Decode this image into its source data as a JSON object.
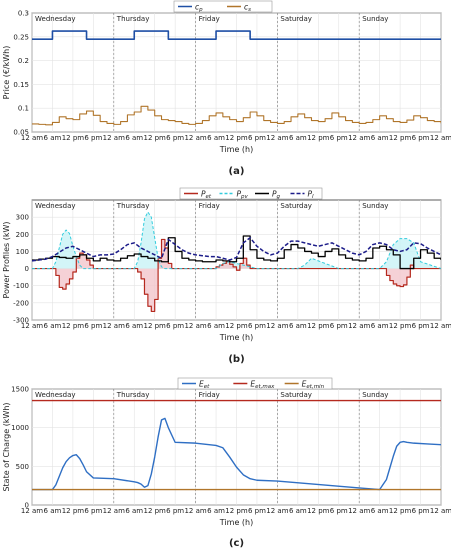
{
  "charts": [
    {
      "caption": "(a)",
      "ylabel": "Price (€/kWh)",
      "xlabel": "Time (h)",
      "ylim": [
        0.05,
        0.3
      ],
      "yticks": [
        "0.05",
        "0.1",
        "0.15",
        "0.2",
        "0.25",
        "0.3"
      ],
      "legend": [
        "c_p",
        "c_s"
      ]
    },
    {
      "caption": "(b)",
      "ylabel": "Power Profiles (kW)",
      "xlabel": "Time (h)",
      "ylim": [
        -300,
        400
      ],
      "yticks": [
        "-300",
        "-200",
        "-100",
        "0",
        "100",
        "200",
        "300"
      ],
      "legend": [
        "P_et",
        "P_pv",
        "P_g",
        "P_l"
      ]
    },
    {
      "caption": "(c)",
      "ylabel": "State of Charge (kWh)",
      "xlabel": "Time (h)",
      "ylim": [
        0,
        1500
      ],
      "yticks": [
        "0",
        "500",
        "1000",
        "1500"
      ],
      "legend": [
        "E_et",
        "E_et,max",
        "E_et,min"
      ]
    }
  ],
  "days": [
    "Wednesday",
    "Thursday",
    "Friday",
    "Saturday",
    "Sunday"
  ],
  "xtick_labels": [
    "12 am",
    "6 am",
    "12 pm",
    "6 pm",
    "12 am",
    "6 am",
    "12 pm",
    "6 pm",
    "12 am",
    "6 am",
    "12 pm",
    "6 pm",
    "12 am",
    "6 am",
    "12 pm",
    "6 pm",
    "12 am",
    "6 am",
    "12 pm",
    "6 pm",
    "12 am"
  ],
  "colors": {
    "blue": "#1f4fa5",
    "brown": "#b0752a",
    "red": "#b5291e",
    "cyan": "#33ccdd",
    "black": "#000000",
    "navy": "#1d1d8a",
    "soc": "#2f6fc4",
    "fill_red": "#f3c6cc",
    "fill_cyan": "#c8f3f6"
  },
  "chart_data": [
    {
      "type": "line",
      "title": "",
      "xlabel": "Time (h)",
      "ylabel": "Price (€/kWh)",
      "x_unit": "hours from Wednesday 12 am",
      "ylim": [
        0.05,
        0.3
      ],
      "series": [
        {
          "name": "c_p",
          "step": true,
          "x": [
            0,
            6,
            6,
            16,
            16,
            24,
            30,
            30,
            40,
            40,
            48,
            54,
            54,
            64,
            64,
            120
          ],
          "y": [
            0.245,
            0.245,
            0.262,
            0.262,
            0.245,
            0.245,
            0.245,
            0.262,
            0.262,
            0.245,
            0.245,
            0.245,
            0.262,
            0.262,
            0.245,
            0.245
          ]
        },
        {
          "name": "c_s",
          "step": true,
          "x": [
            0,
            2,
            4,
            6,
            8,
            10,
            12,
            14,
            16,
            18,
            20,
            22,
            24,
            26,
            28,
            30,
            32,
            34,
            36,
            38,
            40,
            42,
            44,
            46,
            48,
            50,
            52,
            54,
            56,
            58,
            60,
            62,
            64,
            66,
            68,
            70,
            72,
            74,
            76,
            78,
            80,
            82,
            84,
            86,
            88,
            90,
            92,
            94,
            96,
            98,
            100,
            102,
            104,
            106,
            108,
            110,
            112,
            114,
            116,
            118,
            120
          ],
          "y": [
            0.067,
            0.066,
            0.065,
            0.07,
            0.082,
            0.078,
            0.076,
            0.088,
            0.094,
            0.085,
            0.072,
            0.068,
            0.066,
            0.072,
            0.086,
            0.092,
            0.104,
            0.096,
            0.084,
            0.076,
            0.074,
            0.072,
            0.068,
            0.066,
            0.068,
            0.074,
            0.084,
            0.09,
            0.082,
            0.076,
            0.072,
            0.08,
            0.092,
            0.084,
            0.074,
            0.07,
            0.068,
            0.072,
            0.082,
            0.088,
            0.08,
            0.074,
            0.072,
            0.078,
            0.09,
            0.082,
            0.074,
            0.07,
            0.068,
            0.07,
            0.076,
            0.084,
            0.078,
            0.072,
            0.07,
            0.075,
            0.084,
            0.08,
            0.074,
            0.072,
            0.068
          ]
        }
      ]
    },
    {
      "type": "line",
      "title": "",
      "xlabel": "Time (h)",
      "ylabel": "Power Profiles (kW)",
      "x_unit": "hours from Wednesday 12 am",
      "ylim": [
        -300,
        400
      ],
      "series": [
        {
          "name": "P_et",
          "step": true,
          "x": [
            0,
            6,
            7,
            8,
            9,
            10,
            11,
            12,
            13,
            14,
            15,
            16,
            17,
            18,
            24,
            30,
            31,
            32,
            33,
            34,
            35,
            36,
            37,
            38,
            39,
            40,
            41,
            42,
            48,
            54,
            55,
            56,
            57,
            58,
            59,
            60,
            61,
            62,
            63,
            64,
            72,
            96,
            102,
            104,
            105,
            106,
            107,
            108,
            109,
            110,
            111,
            112,
            120
          ],
          "y": [
            0,
            0,
            -40,
            -110,
            -120,
            -90,
            -60,
            -20,
            60,
            90,
            80,
            50,
            20,
            0,
            0,
            0,
            -20,
            -60,
            -150,
            -220,
            -250,
            -180,
            60,
            170,
            120,
            30,
            0,
            0,
            0,
            10,
            20,
            30,
            40,
            25,
            10,
            -10,
            30,
            60,
            20,
            0,
            0,
            0,
            0,
            -40,
            -70,
            -90,
            -100,
            -105,
            -95,
            -50,
            20,
            0,
            0
          ]
        },
        {
          "name": "P_pv",
          "step": false,
          "x": [
            0,
            6,
            7,
            8,
            9,
            10,
            11,
            12,
            13,
            14,
            15,
            16,
            17,
            18,
            24,
            30,
            31,
            32,
            33,
            34,
            35,
            36,
            37,
            38,
            39,
            40,
            41,
            42,
            48,
            54,
            56,
            58,
            60,
            62,
            64,
            66,
            72,
            78,
            80,
            82,
            84,
            86,
            88,
            90,
            96,
            102,
            104,
            106,
            108,
            110,
            112,
            114,
            120
          ],
          "y": [
            0,
            0,
            40,
            120,
            200,
            225,
            205,
            130,
            70,
            20,
            0,
            0,
            0,
            0,
            0,
            0,
            40,
            150,
            290,
            330,
            300,
            180,
            60,
            10,
            0,
            0,
            0,
            0,
            0,
            0,
            30,
            40,
            30,
            20,
            10,
            0,
            0,
            0,
            20,
            60,
            45,
            30,
            15,
            0,
            0,
            0,
            40,
            140,
            175,
            175,
            150,
            40,
            0
          ]
        },
        {
          "name": "P_g",
          "step": true,
          "x": [
            0,
            2,
            4,
            6,
            8,
            10,
            12,
            14,
            16,
            18,
            20,
            22,
            24,
            26,
            28,
            30,
            32,
            34,
            36,
            38,
            40,
            42,
            44,
            46,
            48,
            50,
            52,
            54,
            56,
            58,
            60,
            62,
            64,
            66,
            68,
            70,
            72,
            74,
            76,
            78,
            80,
            82,
            84,
            86,
            88,
            90,
            92,
            94,
            96,
            98,
            100,
            102,
            104,
            106,
            108,
            110,
            112,
            114,
            116,
            118,
            120
          ],
          "y": [
            50,
            55,
            60,
            70,
            65,
            60,
            70,
            80,
            60,
            45,
            60,
            50,
            45,
            60,
            75,
            85,
            70,
            60,
            45,
            40,
            180,
            100,
            60,
            50,
            45,
            40,
            40,
            50,
            45,
            40,
            60,
            190,
            110,
            60,
            50,
            45,
            60,
            110,
            140,
            120,
            100,
            90,
            70,
            100,
            115,
            80,
            60,
            50,
            45,
            60,
            120,
            130,
            110,
            80,
            0,
            0,
            60,
            110,
            90,
            60,
            50
          ]
        },
        {
          "name": "P_l",
          "step": false,
          "x": [
            0,
            2,
            4,
            6,
            8,
            10,
            12,
            14,
            16,
            18,
            20,
            22,
            24,
            26,
            28,
            30,
            32,
            34,
            36,
            38,
            40,
            42,
            44,
            46,
            48,
            50,
            52,
            54,
            56,
            58,
            60,
            62,
            64,
            66,
            68,
            70,
            72,
            74,
            76,
            78,
            80,
            82,
            84,
            86,
            88,
            90,
            92,
            94,
            96,
            98,
            100,
            102,
            104,
            106,
            108,
            110,
            112,
            114,
            116,
            118,
            120
          ],
          "y": [
            45,
            50,
            55,
            70,
            95,
            120,
            130,
            110,
            90,
            70,
            80,
            80,
            85,
            110,
            140,
            150,
            120,
            100,
            80,
            60,
            170,
            140,
            110,
            90,
            80,
            75,
            70,
            70,
            60,
            50,
            65,
            150,
            180,
            130,
            100,
            80,
            90,
            130,
            160,
            160,
            150,
            140,
            130,
            140,
            150,
            130,
            110,
            90,
            80,
            100,
            140,
            150,
            140,
            110,
            100,
            110,
            150,
            145,
            120,
            100,
            80
          ]
        }
      ]
    },
    {
      "type": "line",
      "title": "",
      "xlabel": "Time (h)",
      "ylabel": "State of Charge (kWh)",
      "x_unit": "hours from Wednesday 12 am",
      "ylim": [
        0,
        1500
      ],
      "series": [
        {
          "name": "E_et",
          "step": false,
          "x": [
            0,
            6,
            7,
            8,
            9,
            10,
            11,
            12,
            13,
            14,
            15,
            16,
            18,
            24,
            30,
            31,
            32,
            33,
            34,
            35,
            36,
            37,
            38,
            39,
            40,
            42,
            48,
            54,
            56,
            58,
            60,
            62,
            64,
            66,
            72,
            96,
            102,
            104,
            105,
            106,
            107,
            108,
            109,
            110,
            112,
            116,
            120
          ],
          "y": [
            200,
            200,
            260,
            370,
            480,
            560,
            610,
            640,
            650,
            600,
            520,
            430,
            350,
            340,
            300,
            290,
            270,
            230,
            250,
            400,
            620,
            880,
            1100,
            1120,
            1000,
            810,
            800,
            770,
            740,
            620,
            490,
            390,
            340,
            320,
            310,
            220,
            200,
            330,
            480,
            630,
            760,
            810,
            820,
            810,
            800,
            790,
            780
          ]
        },
        {
          "name": "E_et,max",
          "step": false,
          "x": [
            0,
            120
          ],
          "y": [
            1350,
            1350
          ]
        },
        {
          "name": "E_et,min",
          "step": false,
          "x": [
            0,
            120
          ],
          "y": [
            200,
            200
          ]
        }
      ]
    }
  ]
}
